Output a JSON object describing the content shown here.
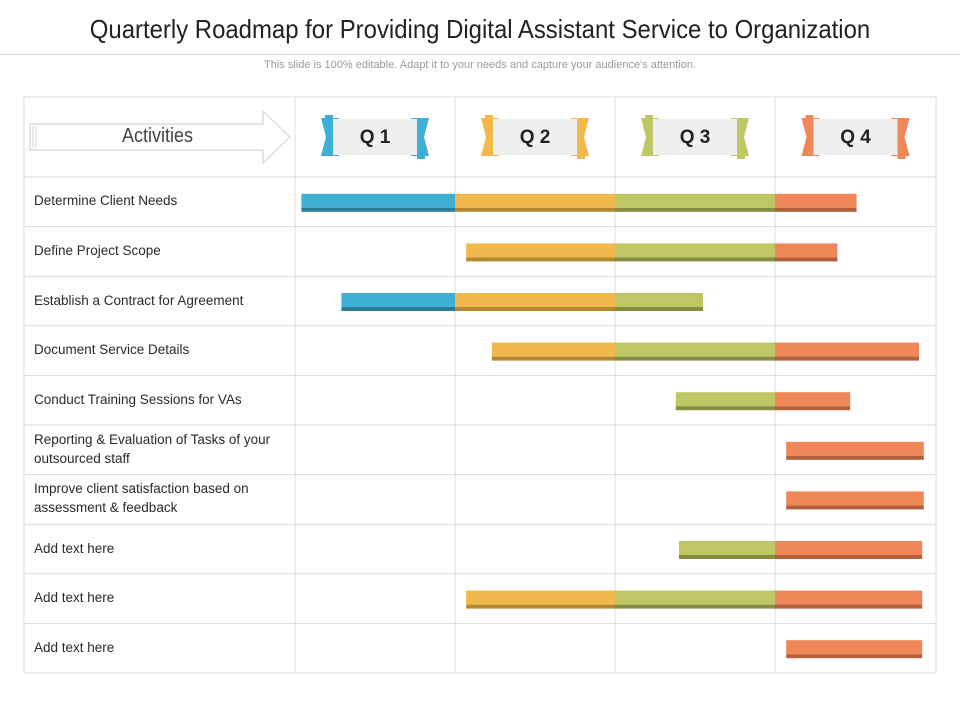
{
  "title": "Quarterly Roadmap for Providing Digital Assistant Service to Organization",
  "subtitle": "This slide is 100% editable. Adapt it to your needs and capture your audience's attention.",
  "activities_label": "Activities",
  "quarters": [
    {
      "label": "Q 1",
      "color": "#3eb0d5",
      "shadow": "#2a7d98"
    },
    {
      "label": "Q 2",
      "color": "#f2b84b",
      "shadow": "#b5872f"
    },
    {
      "label": "Q 3",
      "color": "#bfc764",
      "shadow": "#868d3f"
    },
    {
      "label": "Q 4",
      "color": "#ef8758",
      "shadow": "#b35f39"
    }
  ],
  "rows": [
    {
      "label": "Determine Client Needs",
      "start_quarter": 0.04,
      "end_quarter": 3.51
    },
    {
      "label": "Define Project Scope",
      "start_quarter": 1.07,
      "end_quarter": 3.39
    },
    {
      "label": "Establish a Contract for Agreement",
      "start_quarter": 0.29,
      "end_quarter": 2.55
    },
    {
      "label": "Document Service Details",
      "start_quarter": 1.23,
      "end_quarter": 3.9
    },
    {
      "label": "Conduct Training Sessions for VAs",
      "start_quarter": 2.38,
      "end_quarter": 3.47
    },
    {
      "label": "Reporting & Evaluation of Tasks of your outsourced staff",
      "start_quarter": 3.07,
      "end_quarter": 3.93
    },
    {
      "label": "Improve  client satisfaction based on assessment & feedback",
      "start_quarter": 3.07,
      "end_quarter": 3.93
    },
    {
      "label": "Add text here",
      "start_quarter": 2.4,
      "end_quarter": 3.92
    },
    {
      "label": "Add text here",
      "start_quarter": 1.07,
      "end_quarter": 3.92
    },
    {
      "label": "Add text here",
      "start_quarter": 3.07,
      "end_quarter": 3.92
    }
  ]
}
